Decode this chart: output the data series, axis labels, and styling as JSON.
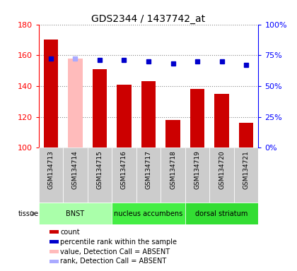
{
  "title": "GDS2344 / 1437742_at",
  "samples": [
    "GSM134713",
    "GSM134714",
    "GSM134715",
    "GSM134716",
    "GSM134717",
    "GSM134718",
    "GSM134719",
    "GSM134720",
    "GSM134721"
  ],
  "counts": [
    170,
    null,
    151,
    141,
    143,
    118,
    138,
    135,
    116
  ],
  "counts_absent": [
    null,
    158,
    null,
    null,
    null,
    null,
    null,
    null,
    null
  ],
  "pct_ranks": [
    72,
    72,
    71,
    71,
    70,
    68,
    70,
    70,
    67
  ],
  "pct_ranks_absent": [
    null,
    72,
    null,
    null,
    null,
    null,
    null,
    null,
    null
  ],
  "ylim": [
    100,
    180
  ],
  "y2lim": [
    0,
    100
  ],
  "yticks": [
    100,
    120,
    140,
    160,
    180
  ],
  "y2ticks": [
    0,
    25,
    50,
    75,
    100
  ],
  "y2ticklabels": [
    "0%",
    "25%",
    "50%",
    "75%",
    "100%"
  ],
  "tissue_groups": [
    {
      "label": "BNST",
      "start": 0,
      "end": 3,
      "color": "#aaffaa"
    },
    {
      "label": "nucleus accumbens",
      "start": 3,
      "end": 6,
      "color": "#44ee44"
    },
    {
      "label": "dorsal striatum",
      "start": 6,
      "end": 9,
      "color": "#33dd33"
    }
  ],
  "bar_color": "#cc0000",
  "bar_absent_color": "#ffbbbb",
  "rank_color": "#0000cc",
  "rank_absent_color": "#aaaaff",
  "sample_bg_color": "#cccccc",
  "bar_width": 0.6,
  "legend_items": [
    {
      "label": "count",
      "color": "#cc0000"
    },
    {
      "label": "percentile rank within the sample",
      "color": "#0000cc"
    },
    {
      "label": "value, Detection Call = ABSENT",
      "color": "#ffbbbb"
    },
    {
      "label": "rank, Detection Call = ABSENT",
      "color": "#aaaaff"
    }
  ]
}
